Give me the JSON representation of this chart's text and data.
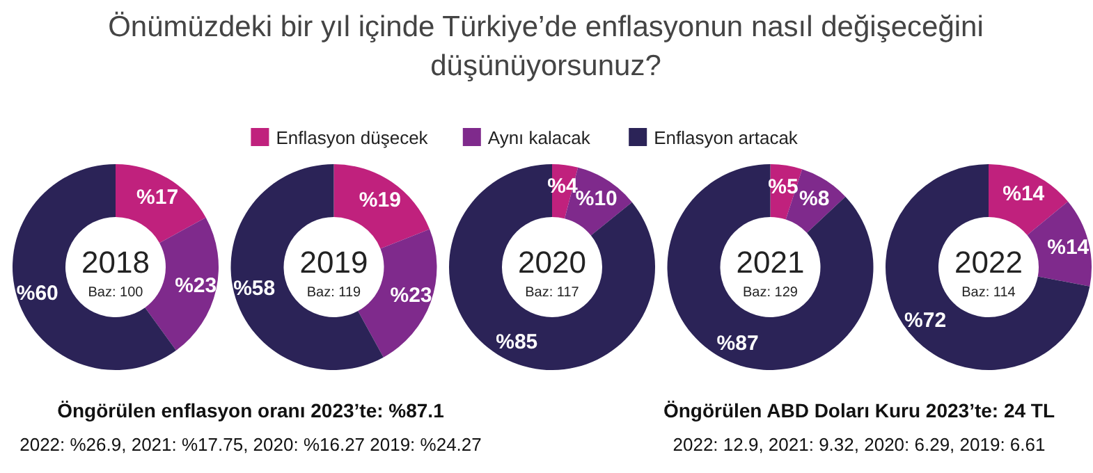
{
  "chart_data": [
    {
      "type": "other",
      "title": "Önümüzdeki bir yıl içinde Türkiye’de enflasyonun nasıl değişeceğini düşünüyorsunuz?",
      "annotations": [
        "Öngörülen enflasyon oranı 2023’te: %87.1",
        "2022: %26.9, 2021: %17.75, 2020: %16.27 2019: %24.27",
        "Öngörülen ABD Doları Kuru 2023’te: 24 TL",
        "2022: 12.9, 2021: 9.32, 2020: 6.29, 2019: 6.61"
      ]
    },
    {
      "type": "donut",
      "title": "2018",
      "subtitle": "Baz: 100",
      "categories": [
        "Enflasyon düşecek",
        "Aynı kalacak",
        "Enflasyon artacak"
      ],
      "values": [
        17,
        23,
        60
      ],
      "value_labels": [
        "%17",
        "%23",
        "%60"
      ],
      "colors": [
        "#c0217d",
        "#7f2a8c",
        "#2b2357"
      ],
      "legend": "top"
    },
    {
      "type": "donut",
      "title": "2019",
      "subtitle": "Baz: 119",
      "values": [
        19,
        23,
        58
      ],
      "value_labels": [
        "%19",
        "%23",
        "%58"
      ],
      "colors": [
        "#c0217d",
        "#7f2a8c",
        "#2b2357"
      ]
    },
    {
      "type": "donut",
      "title": "2020",
      "subtitle": "Baz: 117",
      "values": [
        4,
        10,
        85
      ],
      "value_labels": [
        "%4",
        "%10",
        "%85"
      ],
      "colors": [
        "#c0217d",
        "#7f2a8c",
        "#2b2357"
      ]
    },
    {
      "type": "donut",
      "title": "2021",
      "subtitle": "Baz: 129",
      "values": [
        5,
        8,
        87
      ],
      "value_labels": [
        "%5",
        "%8",
        "%87"
      ],
      "colors": [
        "#c0217d",
        "#7f2a8c",
        "#2b2357"
      ]
    },
    {
      "type": "donut",
      "title": "2022",
      "subtitle": "Baz: 114",
      "values": [
        14,
        14,
        72
      ],
      "value_labels": [
        "%14",
        "%14",
        "%72"
      ],
      "colors": [
        "#c0217d",
        "#7f2a8c",
        "#2b2357"
      ]
    }
  ]
}
